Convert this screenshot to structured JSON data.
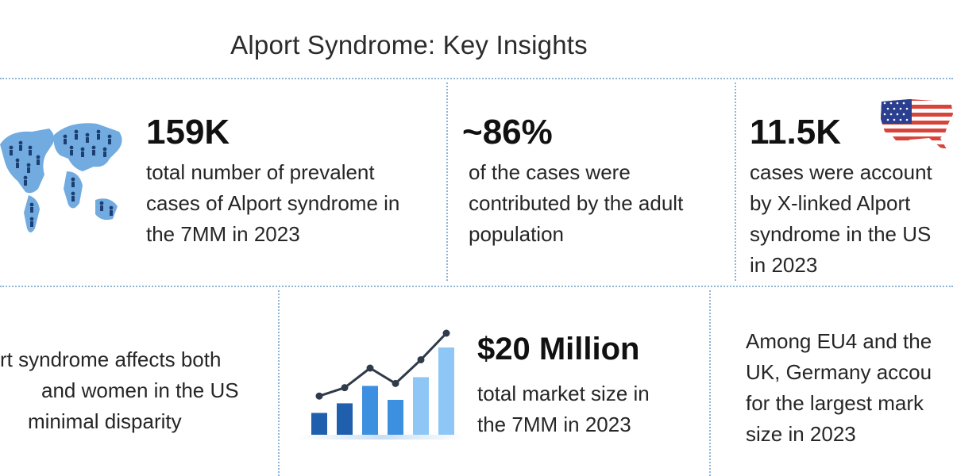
{
  "title": "Alport Syndrome: Key Insights",
  "cards": {
    "prevalent": {
      "value": "159K",
      "lines": [
        "total number of prevalent",
        "cases of Alport syndrome in",
        "the 7MM in 2023"
      ],
      "icon": "world-map-people-icon"
    },
    "adult": {
      "value": "~86%",
      "lines": [
        "of the cases were",
        "contributed by the adult",
        "population"
      ]
    },
    "xlinked": {
      "value": "11.5K",
      "lines": [
        "cases were account",
        "by X-linked Alport",
        "syndrome in the US",
        "in 2023"
      ],
      "icon": "us-flag-map-icon"
    },
    "gender": {
      "lines": [
        "rt syndrome affects both",
        "and women in the US",
        "minimal disparity"
      ]
    },
    "market": {
      "value": "$20 Million",
      "lines": [
        "total market size in",
        "the 7MM in 2023"
      ],
      "icon": "bar-line-growth-chart-icon",
      "bar_levels": [
        0.25,
        0.36,
        0.56,
        0.4,
        0.66,
        1.0
      ],
      "line_levels": [
        0.1,
        0.22,
        0.5,
        0.28,
        0.62,
        1.0
      ]
    },
    "eu4": {
      "lines": [
        "Among EU4 and the",
        "UK, Germany accou",
        "for the largest mark",
        "size in 2023"
      ]
    }
  },
  "colors": {
    "accent_dark": "#1f5fae",
    "accent_mid": "#3d8fe0",
    "accent_light": "#8ec6f5",
    "map_blue": "#72abe0",
    "divider": "#8fb4d8",
    "flag_red": "#d9443a",
    "flag_blue": "#2a3f8f"
  }
}
